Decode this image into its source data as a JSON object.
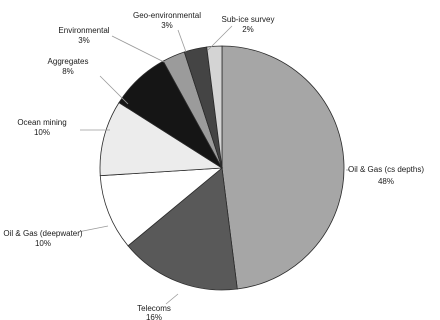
{
  "chart_data": {
    "type": "pie",
    "title": "",
    "start_category": "Oil & Gas (cs depths)",
    "direction": "clockwise",
    "slices": [
      {
        "name": "Oil & Gas (cs depths)",
        "value": 48,
        "label": "48%",
        "color": "#a6a6a6"
      },
      {
        "name": "Telecoms",
        "value": 16,
        "label": "16%",
        "color": "#595959"
      },
      {
        "name": "Oil & Gas (deepwater)",
        "value": 10,
        "label": "10%",
        "color": "#ffffff"
      },
      {
        "name": "Ocean mining",
        "value": 10,
        "label": "10%",
        "color": "#ececec"
      },
      {
        "name": "Aggregates",
        "value": 8,
        "label": "8%",
        "color": "#151515"
      },
      {
        "name": "Environmental",
        "value": 3,
        "label": "3%",
        "color": "#9b9b9b"
      },
      {
        "name": "Geo-environmental",
        "value": 3,
        "label": "3%",
        "color": "#444444"
      },
      {
        "name": "Sub-ice survey",
        "value": 2,
        "label": "2%",
        "color": "#d4d4d4"
      }
    ]
  }
}
